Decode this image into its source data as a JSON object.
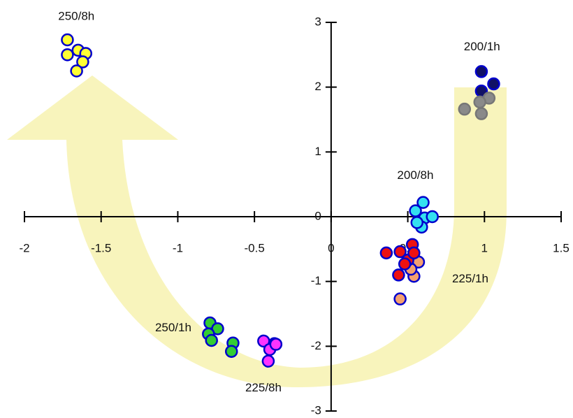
{
  "chart_data": {
    "type": "scatter",
    "xlim": [
      -2,
      1.5
    ],
    "ylim": [
      -3,
      3
    ],
    "xticks": [
      -2,
      -1.5,
      -1,
      -0.5,
      0,
      0.5,
      1,
      1.5
    ],
    "yticks": [
      -3,
      -2,
      -1,
      0,
      1,
      2,
      3
    ],
    "grid": false,
    "series": [
      {
        "name": "250/8h",
        "color": "#ffff33",
        "x": [
          -1.72,
          -1.65,
          -1.72,
          -1.6,
          -1.62,
          -1.66
        ],
        "values": [
          2.73,
          2.57,
          2.5,
          2.52,
          2.39,
          2.25
        ]
      },
      {
        "name": "250/1h",
        "color": "#33cc33",
        "x": [
          -0.79,
          -0.74,
          -0.8,
          -0.78,
          -0.64,
          -0.65
        ],
        "values": [
          -1.64,
          -1.73,
          -1.81,
          -1.91,
          -1.95,
          -2.08
        ]
      },
      {
        "name": "225/8h",
        "color": "#ff33ff",
        "x": [
          -0.44,
          -0.37,
          -0.4,
          -0.36,
          -0.41
        ],
        "values": [
          -1.92,
          -1.96,
          -2.05,
          -1.97,
          -2.23
        ]
      },
      {
        "name": "225/1h",
        "color": "#f4a070",
        "x": [
          0.45,
          0.54,
          0.57,
          0.52
        ],
        "values": [
          -1.27,
          -0.92,
          -0.7,
          -0.81
        ]
      },
      {
        "color": "#ee1111",
        "x": [
          0.36,
          0.44,
          0.45,
          0.5,
          0.53,
          0.54,
          0.48
        ],
        "values": [
          -0.56,
          -0.9,
          -0.54,
          -0.67,
          -0.43,
          -0.56,
          -0.73
        ]
      },
      {
        "name": "200/8h",
        "color": "#33e0f0",
        "x": [
          0.55,
          0.6,
          0.61,
          0.59,
          0.66,
          0.56
        ],
        "values": [
          0.09,
          0.22,
          -0.02,
          -0.16,
          0.0,
          -0.09
        ]
      },
      {
        "name": "200/1h",
        "color": "#111166",
        "x": [
          0.98,
          1.06,
          0.98
        ],
        "values": [
          2.24,
          2.05,
          1.94
        ]
      },
      {
        "color": "#8a8a8a",
        "x": [
          0.87,
          0.98,
          1.03,
          0.97
        ],
        "values": [
          1.66,
          1.59,
          1.83,
          1.77
        ]
      }
    ]
  }
}
